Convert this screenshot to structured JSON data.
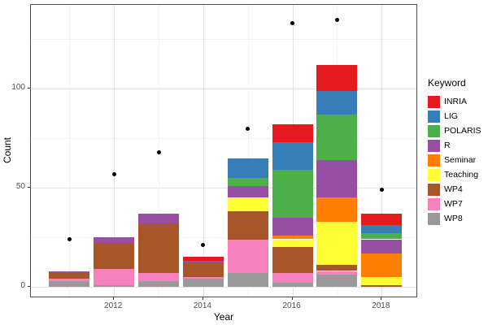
{
  "axes": {
    "x_title": "Year",
    "y_title": "Count",
    "x_tick_labels": [
      "2012",
      "2014",
      "2016",
      "2018"
    ],
    "y_tick_labels": [
      "0",
      "50",
      "100"
    ]
  },
  "legend": {
    "title": "Keyword"
  },
  "chart_data": {
    "type": "bar",
    "stacked": true,
    "title": "",
    "xlabel": "Year",
    "ylabel": "Count",
    "ylim": [
      0,
      140
    ],
    "grid": true,
    "legend_position": "right",
    "legend_title": "Keyword",
    "categories": [
      2011,
      2012,
      2013,
      2014,
      2015,
      2016,
      2017,
      2018
    ],
    "x_major_ticks": [
      2012,
      2014,
      2016,
      2018
    ],
    "y_major_ticks": [
      0,
      50,
      100
    ],
    "y_minor_ticks": [
      25,
      75,
      125
    ],
    "stack_order_bottom_to_top": [
      "WP8",
      "WP7",
      "WP4",
      "Teaching",
      "Seminar",
      "R",
      "POLARIS",
      "LIG",
      "INRIA"
    ],
    "series": [
      {
        "name": "INRIA",
        "color": "#E41A1C",
        "values": [
          0,
          0,
          0,
          2,
          0,
          9,
          13,
          6
        ]
      },
      {
        "name": "LIG",
        "color": "#377EB8",
        "values": [
          0,
          0,
          0,
          0,
          10,
          14,
          12,
          4
        ]
      },
      {
        "name": "POLARIS",
        "color": "#4DAF4A",
        "values": [
          0,
          0,
          0,
          0,
          4,
          24,
          23,
          3
        ]
      },
      {
        "name": "R",
        "color": "#984EA3",
        "values": [
          1,
          3,
          5,
          1,
          6,
          9,
          19,
          7
        ]
      },
      {
        "name": "Seminar",
        "color": "#FF7F00",
        "values": [
          0,
          0,
          0,
          0,
          0,
          2,
          12,
          12
        ]
      },
      {
        "name": "Teaching",
        "color": "#FFFF33",
        "values": [
          0,
          0,
          0,
          0,
          7,
          4,
          22,
          4
        ]
      },
      {
        "name": "WP4",
        "color": "#A65628",
        "values": [
          3,
          13,
          25,
          7,
          14,
          13,
          3,
          1
        ]
      },
      {
        "name": "WP7",
        "color": "#F781BF",
        "values": [
          1,
          8,
          4,
          1,
          17,
          5,
          2,
          0
        ]
      },
      {
        "name": "WP8",
        "color": "#999999",
        "values": [
          3,
          1,
          3,
          4,
          7,
          2,
          6,
          0
        ]
      }
    ],
    "bar_totals": [
      8,
      25,
      37,
      15,
      65,
      82,
      112,
      37
    ],
    "points": {
      "shape": "filled-circle",
      "color": "#000000",
      "values": [
        24,
        57,
        68,
        21,
        80,
        133,
        135,
        49
      ]
    }
  },
  "style": {
    "panel_border_color": "#4d4d4d",
    "grid_major_color": "#e4e4e4",
    "grid_minor_color": "#f2f2f2",
    "tick_label_color": "#4d4d4d",
    "point_color": "#000000"
  }
}
